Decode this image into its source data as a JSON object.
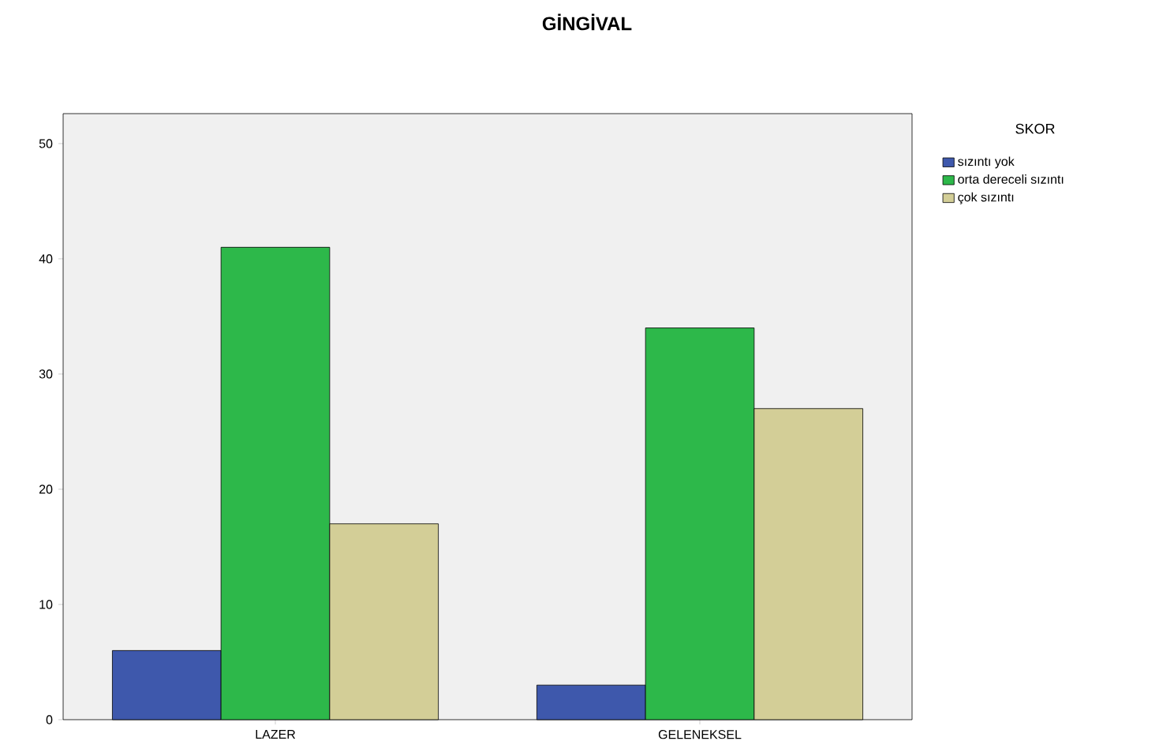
{
  "chart_data": {
    "type": "bar",
    "title": "GİNGİVAL",
    "legend_title": "SKOR",
    "categories": [
      "LAZER",
      "GELENEKSEL"
    ],
    "series": [
      {
        "name": "sızıntı yok",
        "color": "#3e58ac",
        "values": [
          6,
          3
        ]
      },
      {
        "name": "orta dereceli sızıntı",
        "color": "#2db84a",
        "values": [
          41,
          34
        ]
      },
      {
        "name": "çok sızıntı",
        "color": "#d3ce97",
        "values": [
          17,
          27
        ]
      }
    ],
    "ylim": [
      0,
      52.6
    ],
    "yticks": [
      0,
      10,
      20,
      30,
      40,
      50
    ],
    "grid": false,
    "legend": "top right"
  }
}
